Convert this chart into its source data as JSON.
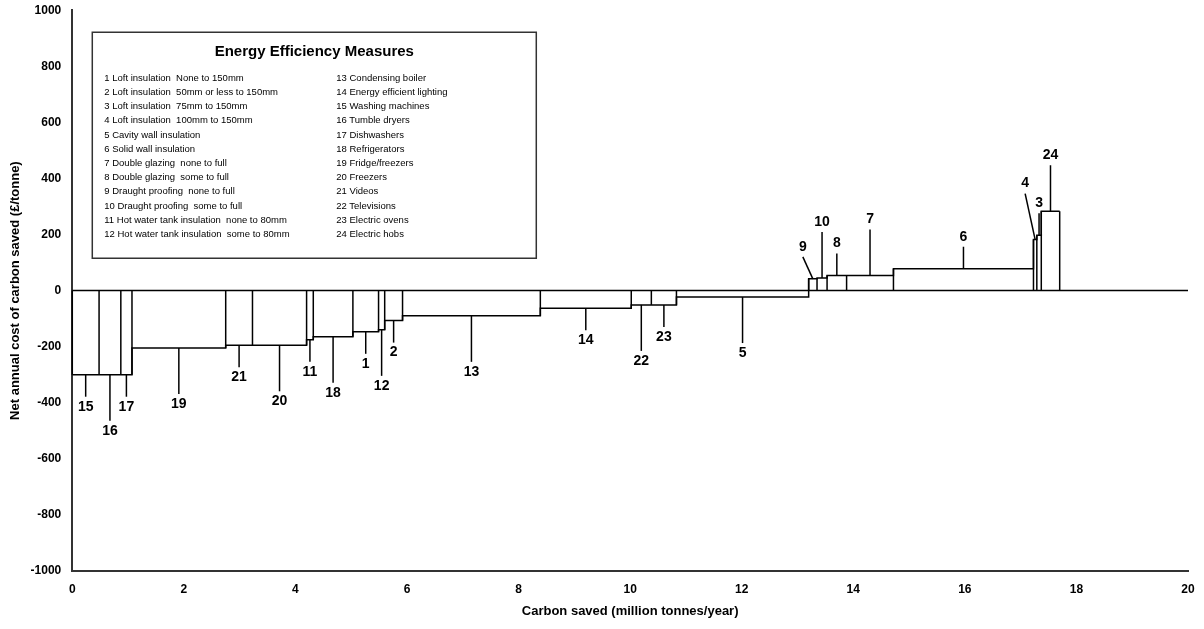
{
  "chart_data": {
    "type": "step",
    "xlabel": "Carbon saved (million tonnes/year)",
    "ylabel": "Net annual cost of carbon saved (£/tonne)",
    "x": [
      0,
      0.48,
      0.87,
      1.07,
      2.75,
      3.23,
      4.2,
      4.32,
      5.03,
      5.49,
      5.6,
      5.92,
      8.39,
      10.02,
      10.38,
      10.83,
      13.2,
      13.35,
      13.53,
      13.88,
      14.72,
      17.23,
      17.29,
      17.37,
      17.7
    ],
    "values": [
      -300,
      -300,
      -300,
      -205,
      -195,
      -195,
      -175,
      -165,
      -147,
      -140,
      -107,
      -90,
      -63,
      -51,
      -51,
      -23,
      42,
      45,
      54,
      54,
      78,
      182,
      197,
      283,
      283
    ],
    "color": "#000000",
    "xlim": [
      0,
      20
    ],
    "xticks": [
      0,
      2,
      4,
      6,
      8,
      10,
      12,
      14,
      16,
      18,
      20
    ],
    "ylim": [
      -1000,
      1000
    ],
    "yticks": [
      1000,
      800,
      600,
      400,
      200,
      0,
      -200,
      -400,
      -600,
      -800,
      -1000
    ],
    "legend": false,
    "ref_lines": [
      {
        "axis": "y",
        "value": 0,
        "color": "#000000"
      }
    ],
    "annotations": [
      {
        "text": "15",
        "x": 0.24,
        "y": -300
      },
      {
        "text": "16",
        "x": 0.675,
        "y": -300
      },
      {
        "text": "17",
        "x": 0.97,
        "y": -300
      },
      {
        "text": "19",
        "x": 1.91,
        "y": -205
      },
      {
        "text": "21",
        "x": 2.99,
        "y": -195
      },
      {
        "text": "20",
        "x": 3.715,
        "y": -195
      },
      {
        "text": "11",
        "x": 4.26,
        "y": -175
      },
      {
        "text": "18",
        "x": 4.675,
        "y": -165
      },
      {
        "text": "1",
        "x": 5.26,
        "y": -147
      },
      {
        "text": "12",
        "x": 5.545,
        "y": -140
      },
      {
        "text": "2",
        "x": 5.76,
        "y": -107
      },
      {
        "text": "13",
        "x": 7.155,
        "y": -90
      },
      {
        "text": "14",
        "x": 9.205,
        "y": -63
      },
      {
        "text": "22",
        "x": 10.2,
        "y": -51
      },
      {
        "text": "23",
        "x": 10.605,
        "y": -51
      },
      {
        "text": "5",
        "x": 12.015,
        "y": -23
      },
      {
        "text": "9",
        "x": 13.275,
        "y": 42
      },
      {
        "text": "10",
        "x": 13.44,
        "y": 45
      },
      {
        "text": "8",
        "x": 13.705,
        "y": 54
      },
      {
        "text": "7",
        "x": 14.3,
        "y": 54
      },
      {
        "text": "6",
        "x": 15.975,
        "y": 78
      },
      {
        "text": "4",
        "x": 17.26,
        "y": 182
      },
      {
        "text": "3",
        "x": 17.33,
        "y": 197
      },
      {
        "text": "24",
        "x": 17.535,
        "y": 283
      },
      "Energy Efficiency Measures",
      "1 Loft insulation  None to 150mm",
      "2 Loft insulation  50mm or less to 150mm",
      "3 Loft insulation  75mm to 150mm",
      "4 Loft insulation  100mm to 150mm",
      "5 Cavity wall insulation",
      "6 Solid wall insulation",
      "7 Double glazing  none to full",
      "8 Double glazing  some to full",
      "9 Draught proofing  none to full",
      "10 Draught proofing  some to full",
      "11 Hot water tank insulation  none to 80mm",
      "12 Hot water tank insulation  some to 80mm",
      "13 Condensing boiler",
      "14 Energy efficient lighting",
      "15 Washing machines",
      "16 Tumble dryers",
      "17 Dishwashers",
      "18 Refrigerators",
      "19 Fridge/freezers",
      "20 Freezers",
      "21 Videos",
      "22 Televisions",
      "23 Electric ovens",
      "24 Electric hobs"
    ]
  }
}
